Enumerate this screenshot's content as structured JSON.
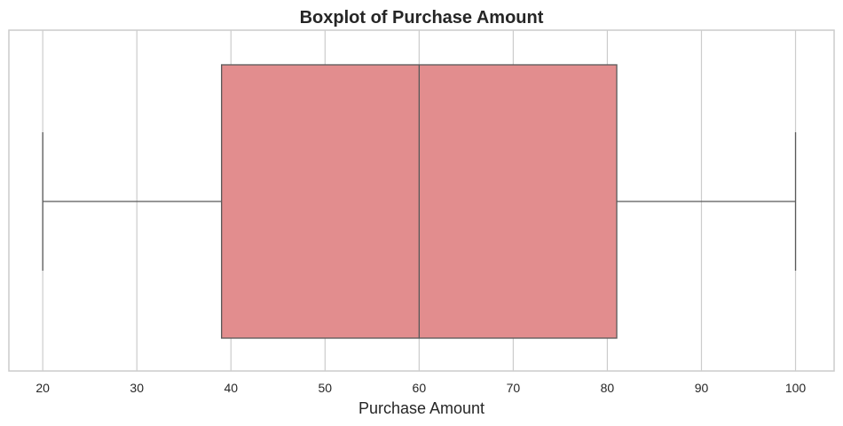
{
  "chart_data": {
    "type": "boxplot",
    "title": "Boxplot of Purchase Amount",
    "xlabel": "Purchase Amount",
    "ylabel": "",
    "xlim": [
      16.4,
      104.1
    ],
    "ticks": [
      20,
      30,
      40,
      50,
      60,
      70,
      80,
      90,
      100
    ],
    "tick_labels": [
      "20",
      "30",
      "40",
      "50",
      "60",
      "70",
      "80",
      "90",
      "100"
    ],
    "grid": true,
    "orientation": "horizontal",
    "box": {
      "min": 20,
      "q1": 39,
      "median": 60,
      "q3": 81,
      "max": 100
    },
    "colors": {
      "box_fill": "#e28d8e",
      "line": "#595959",
      "grid": "#cccccc",
      "spine": "#cccccc"
    }
  }
}
